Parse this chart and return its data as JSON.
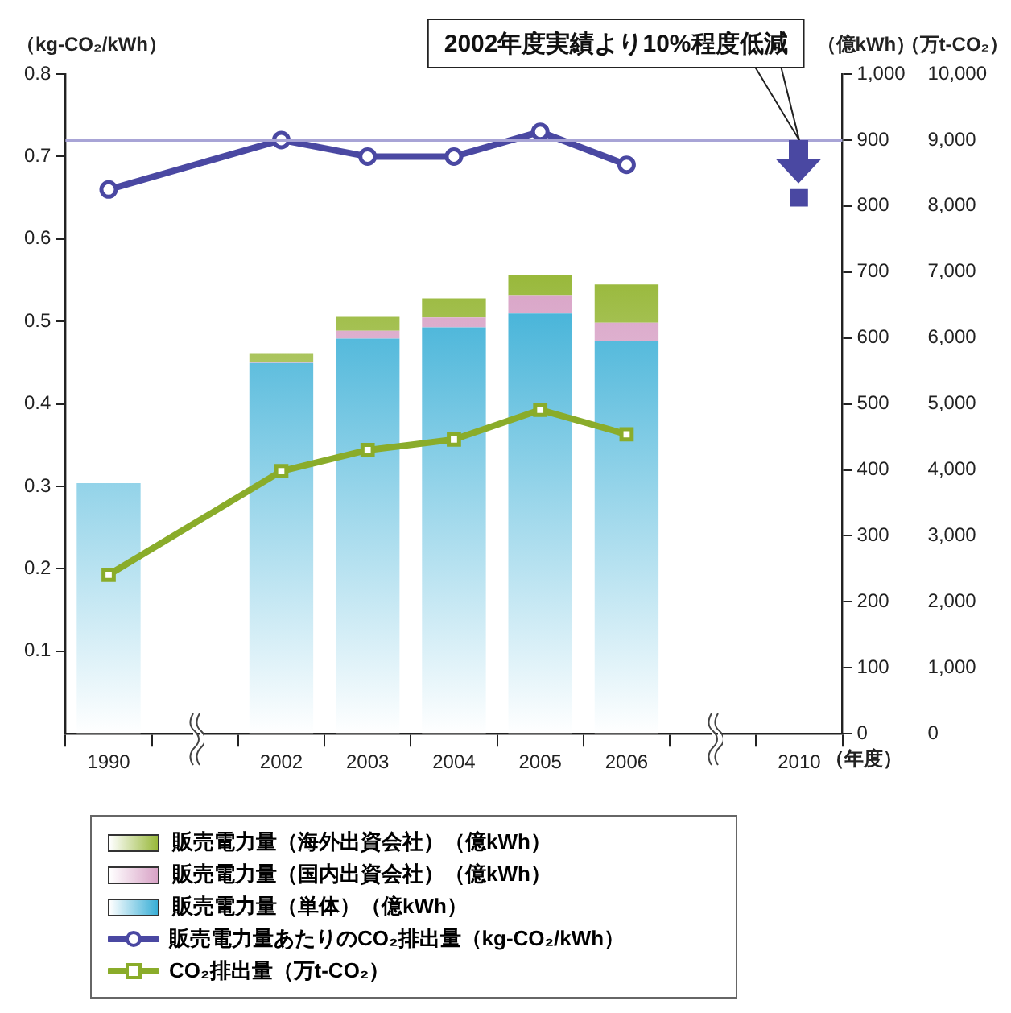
{
  "chart_data": {
    "type": "bar",
    "stacked": true,
    "categories": [
      "1990",
      null,
      "2002",
      "2003",
      "2004",
      "2005",
      "2006",
      null,
      "2010"
    ],
    "series": [
      {
        "name": "販売電力量（単体）（億kWh）",
        "color": "#38aed6",
        "axis": "y2",
        "values": [
          380,
          null,
          562,
          599,
          616,
          637,
          596,
          null,
          null
        ]
      },
      {
        "name": "販売電力量（国内出資会社）（億kWh）",
        "color": "#d8a2c6",
        "axis": "y2",
        "values": [
          null,
          null,
          2,
          12,
          15,
          28,
          27,
          null,
          null
        ]
      },
      {
        "name": "販売電力量（海外出資会社）（億kWh）",
        "color": "#98b83a",
        "axis": "y2",
        "values": [
          null,
          null,
          13,
          21,
          29,
          30,
          58,
          null,
          null
        ]
      },
      {
        "name": "販売電力量あたりのCO₂排出量（kg-CO₂/kWh）",
        "type": "line",
        "color": "#4a48a2",
        "axis": "y",
        "marker": "circle",
        "values": [
          0.66,
          null,
          0.72,
          0.7,
          0.7,
          0.73,
          0.69,
          null,
          null
        ]
      },
      {
        "name": "CO₂排出量（万t-CO₂）",
        "type": "line",
        "color": "#8aac2a",
        "axis": "y3",
        "marker": "square",
        "values": [
          2410,
          null,
          3980,
          4300,
          4460,
          4910,
          4540,
          null,
          null
        ]
      },
      {
        "type": "scatter",
        "color": "#4a48a2",
        "axis": "y",
        "marker": "square",
        "values": [
          null,
          null,
          null,
          null,
          null,
          null,
          null,
          null,
          0.65
        ]
      }
    ],
    "ylabel": "（kg-CO₂/kWh）",
    "y2label": "（億kWh）",
    "y3label": "（万t-CO₂）",
    "xlabel": "（年度）",
    "ylim": [
      0,
      0.8
    ],
    "yticks": [
      0.1,
      0.2,
      0.3,
      0.4,
      0.5,
      0.6,
      0.7,
      0.8
    ],
    "y2lim": [
      0,
      1000
    ],
    "y2ticks": [
      0,
      100,
      200,
      300,
      400,
      500,
      600,
      700,
      800,
      900,
      {
        "value": 1000,
        "label": "1,000"
      }
    ],
    "y3lim": [
      0,
      10000
    ],
    "y3ticks": [
      0,
      {
        "value": 1000,
        "label": "1,000"
      },
      {
        "value": 2000,
        "label": "2,000"
      },
      {
        "value": 3000,
        "label": "3,000"
      },
      {
        "value": 4000,
        "label": "4,000"
      },
      {
        "value": 5000,
        "label": "5,000"
      },
      {
        "value": 6000,
        "label": "6,000"
      },
      {
        "value": 7000,
        "label": "7,000"
      },
      {
        "value": 8000,
        "label": "8,000"
      },
      {
        "value": 9000,
        "label": "9,000"
      },
      {
        "value": 10000,
        "label": "10,000"
      }
    ],
    "ref_lines": [
      {
        "axis": "y",
        "value": 0.72,
        "color": "#a8a4d6"
      }
    ],
    "annotations": [
      "2002年度実績より10%程度低減"
    ],
    "grid": false,
    "legend": "bottom"
  }
}
